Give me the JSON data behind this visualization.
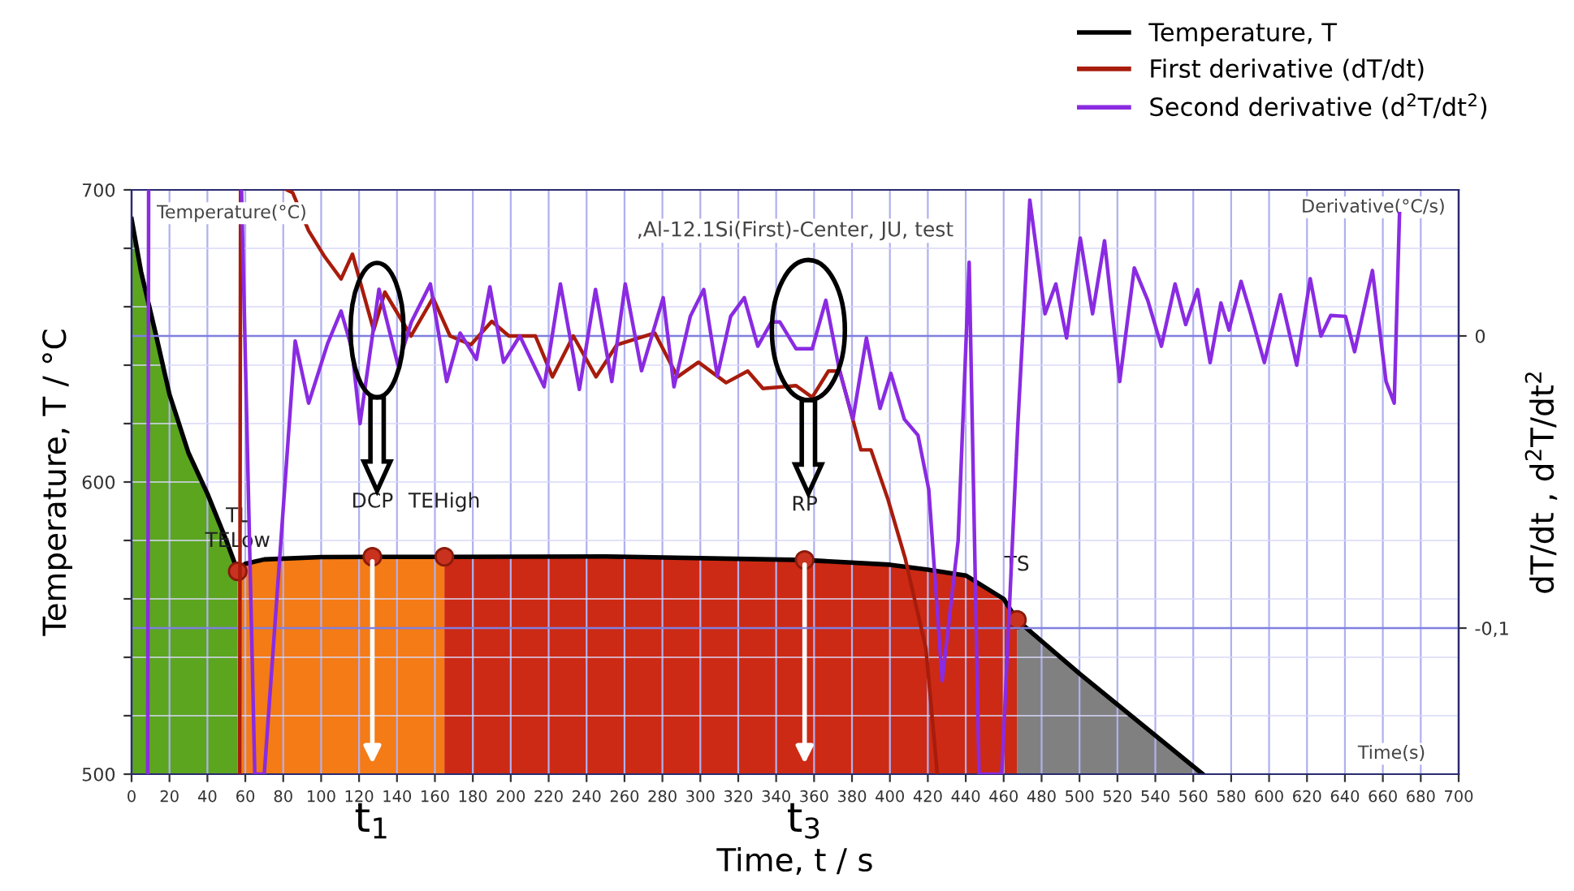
{
  "chart_data": {
    "type": "line",
    "title": ",Al-12.1Si(First)-Center, JU, test",
    "xlabel": "Time, t / s",
    "ylabel": "Temperature, T / °C",
    "y2label": "dT/dt , d$^{2}$T/dt$^{2}$",
    "xlim": [
      0,
      700
    ],
    "ylim": [
      500,
      700
    ],
    "y2lim": [
      -0.15,
      0.05
    ],
    "xticks": [
      0,
      20,
      40,
      60,
      80,
      100,
      120,
      140,
      160,
      180,
      200,
      220,
      240,
      260,
      280,
      300,
      320,
      340,
      360,
      380,
      400,
      420,
      440,
      460,
      480,
      500,
      520,
      540,
      560,
      580,
      600,
      620,
      640,
      660,
      680,
      700
    ],
    "yticks": [
      500,
      {
        "value": 520,
        "label": null
      },
      {
        "value": 540,
        "label": null
      },
      {
        "value": 560,
        "label": null
      },
      {
        "value": 580,
        "label": null
      },
      600,
      {
        "value": 620,
        "label": null
      },
      {
        "value": 640,
        "label": null
      },
      {
        "value": 660,
        "label": null
      },
      {
        "value": 680,
        "label": null
      },
      700
    ],
    "y2ticks": [
      {
        "value": -0.1,
        "label": "-0,1"
      },
      0
    ],
    "grid": true,
    "legend": "top right",
    "series": [
      {
        "type": "area",
        "color": "#5ba51f",
        "x": [
          0,
          5,
          13,
          20,
          30,
          40,
          50,
          56
        ],
        "values": [
          690,
          672,
          650,
          630,
          610,
          596,
          580,
          569.4
        ]
      },
      {
        "type": "area",
        "color": "#f47b16",
        "x": [
          56,
          60,
          70,
          100,
          127,
          165
        ],
        "values": [
          569.4,
          572,
          573.5,
          574.3,
          574.4,
          574.4
        ]
      },
      {
        "type": "area",
        "color": "#cc2a14",
        "x": [
          165,
          250,
          355,
          400,
          420,
          440,
          460,
          467
        ],
        "values": [
          574.4,
          574.5,
          573.3,
          571.7,
          570,
          568,
          560,
          552.8
        ]
      },
      {
        "type": "area",
        "color": "#808080",
        "x": [
          467,
          500,
          565
        ],
        "values": [
          552.8,
          534.4,
          500
        ]
      },
      {
        "name": "Temperature, T",
        "color": "#000000",
        "x": [
          0,
          5,
          13,
          20,
          30,
          40,
          50,
          56,
          60,
          70,
          100,
          127,
          165,
          250,
          355,
          400,
          420,
          440,
          460,
          467,
          500,
          565
        ],
        "values": [
          690,
          672,
          650,
          630,
          610,
          596,
          580,
          569.4,
          572,
          573.5,
          574.3,
          574.4,
          574.4,
          574.5,
          573.3,
          571.7,
          570,
          568,
          560,
          552.8,
          534.4,
          500
        ]
      },
      {
        "name": "First derivative (dT/dt)",
        "color": "#a81c0c",
        "axis": "y2",
        "x": [
          57,
          57.5,
          70,
          82,
          85,
          93.4,
          102,
          110.5,
          116.5,
          127.7,
          133.6,
          147.4,
          159,
          168,
          179,
          190,
          199,
          213,
          222,
          233,
          245,
          256,
          276,
          288,
          299,
          313.6,
          325,
          333,
          350.5,
          359,
          367.6,
          373.6,
          384.7,
          390,
          399,
          408,
          419,
          425
        ],
        "values": [
          -0.15,
          0.05,
          null,
          0.05,
          0.049,
          0.036,
          0.027,
          0.0195,
          0.028,
          0.002,
          0.015,
          0,
          0.013,
          0,
          -0.003,
          0.005,
          0,
          0,
          -0.014,
          0,
          -0.014,
          -0.003,
          0.001,
          -0.014,
          -0.009,
          -0.016,
          -0.012,
          -0.018,
          -0.017,
          -0.021,
          -0.012,
          -0.012,
          -0.039,
          -0.039,
          -0.056,
          -0.076,
          -0.107,
          -0.15
        ]
      },
      {
        "name": "Second derivative (d$^{2}$T/dt$^{2}$)",
        "color": "#8a2be2",
        "axis": "y2",
        "x": [
          8.5,
          9,
          30,
          58,
          65,
          70,
          86.3,
          93.4,
          103.4,
          110.5,
          116.2,
          120.5,
          130.5,
          140.5,
          147.6,
          157.6,
          166.2,
          173.3,
          181.9,
          189,
          196.2,
          204.8,
          217.6,
          226.2,
          236.2,
          244.7,
          253.3,
          260.4,
          269,
          280.4,
          286.1,
          294.7,
          301.8,
          309,
          316,
          323.2,
          330.3,
          337.5,
          341.9,
          350.5,
          359,
          366.2,
          373.4,
          380.5,
          387.6,
          394.8,
          400.5,
          407.6,
          414.8,
          420.5,
          427.6,
          436,
          441.8,
          447,
          459,
          467.5,
          473.8,
          481.8,
          487.5,
          493.2,
          500.4,
          506.9,
          513.2,
          521.2,
          528.9,
          536,
          543.2,
          550.4,
          556,
          562.3,
          568.9,
          574.6,
          578.9,
          585.2,
          590.3,
          597.5,
          606,
          614.6,
          621.7,
          627.4,
          632.5,
          640.3,
          645.1,
          654.5,
          661.7,
          666,
          668.8
        ],
        "values": [
          -0.15,
          0.05,
          null,
          0.05,
          -0.15,
          -0.15,
          -0.0017,
          -0.023,
          -0.0026,
          0.0085,
          -0.0044,
          -0.03,
          0.016,
          -0.01,
          0.0048,
          0.0178,
          -0.0156,
          0.001,
          -0.008,
          0.0168,
          -0.009,
          0,
          -0.0174,
          0.0178,
          -0.0183,
          0.0159,
          -0.0156,
          0.0178,
          -0.0119,
          0.0131,
          -0.0174,
          0.0067,
          0.0159,
          -0.0137,
          0.0067,
          0.0131,
          -0.0035,
          0.0048,
          0.0048,
          -0.0044,
          -0.0044,
          0.0122,
          -0.0119,
          -0.0285,
          -0.0007,
          -0.0248,
          -0.0128,
          -0.0285,
          -0.034,
          -0.0526,
          -0.118,
          -0.07,
          0.0252,
          -0.15,
          -0.15,
          -0.03,
          0.0465,
          0.0076,
          0.0178,
          -0.0007,
          0.0335,
          0.0076,
          0.0326,
          -0.0156,
          0.0233,
          0.0122,
          -0.0035,
          0.0178,
          0.0039,
          0.0159,
          -0.0091,
          0.0113,
          0.002,
          0.0187,
          0.0076,
          -0.0091,
          0.0141,
          -0.01,
          0.0196,
          0,
          0.007,
          0.0067,
          -0.0054,
          0.0224,
          -0.0156,
          -0.023,
          0.0419
        ]
      },
      {
        "type": "scatter",
        "color": "#c8321e",
        "marker": "circle",
        "x": [
          56,
          127,
          165,
          355,
          467
        ],
        "values": [
          569.4,
          574.4,
          574.4,
          573.3,
          552.8
        ]
      }
    ],
    "annotations": [
      "Temperature(°C)",
      "Derivative(°C/s)",
      "Time(s)",
      {
        "text": "TL",
        "x": 56,
        "y": 569.4
      },
      {
        "text": "TELow",
        "x": 56,
        "y": 569.4
      },
      {
        "text": "DCP",
        "x": 127,
        "y": 574.4
      },
      {
        "text": "TEHigh",
        "x": 165,
        "y": 574.4
      },
      {
        "text": "RP",
        "x": 355,
        "y": 573.3
      },
      {
        "text": "TS",
        "x": 467,
        "y": 552.8
      },
      {
        "text": "t$_{1}$",
        "x": 127,
        "y": 500
      },
      {
        "text": "t$_{3}$",
        "x": 355,
        "y": 500
      }
    ]
  }
}
